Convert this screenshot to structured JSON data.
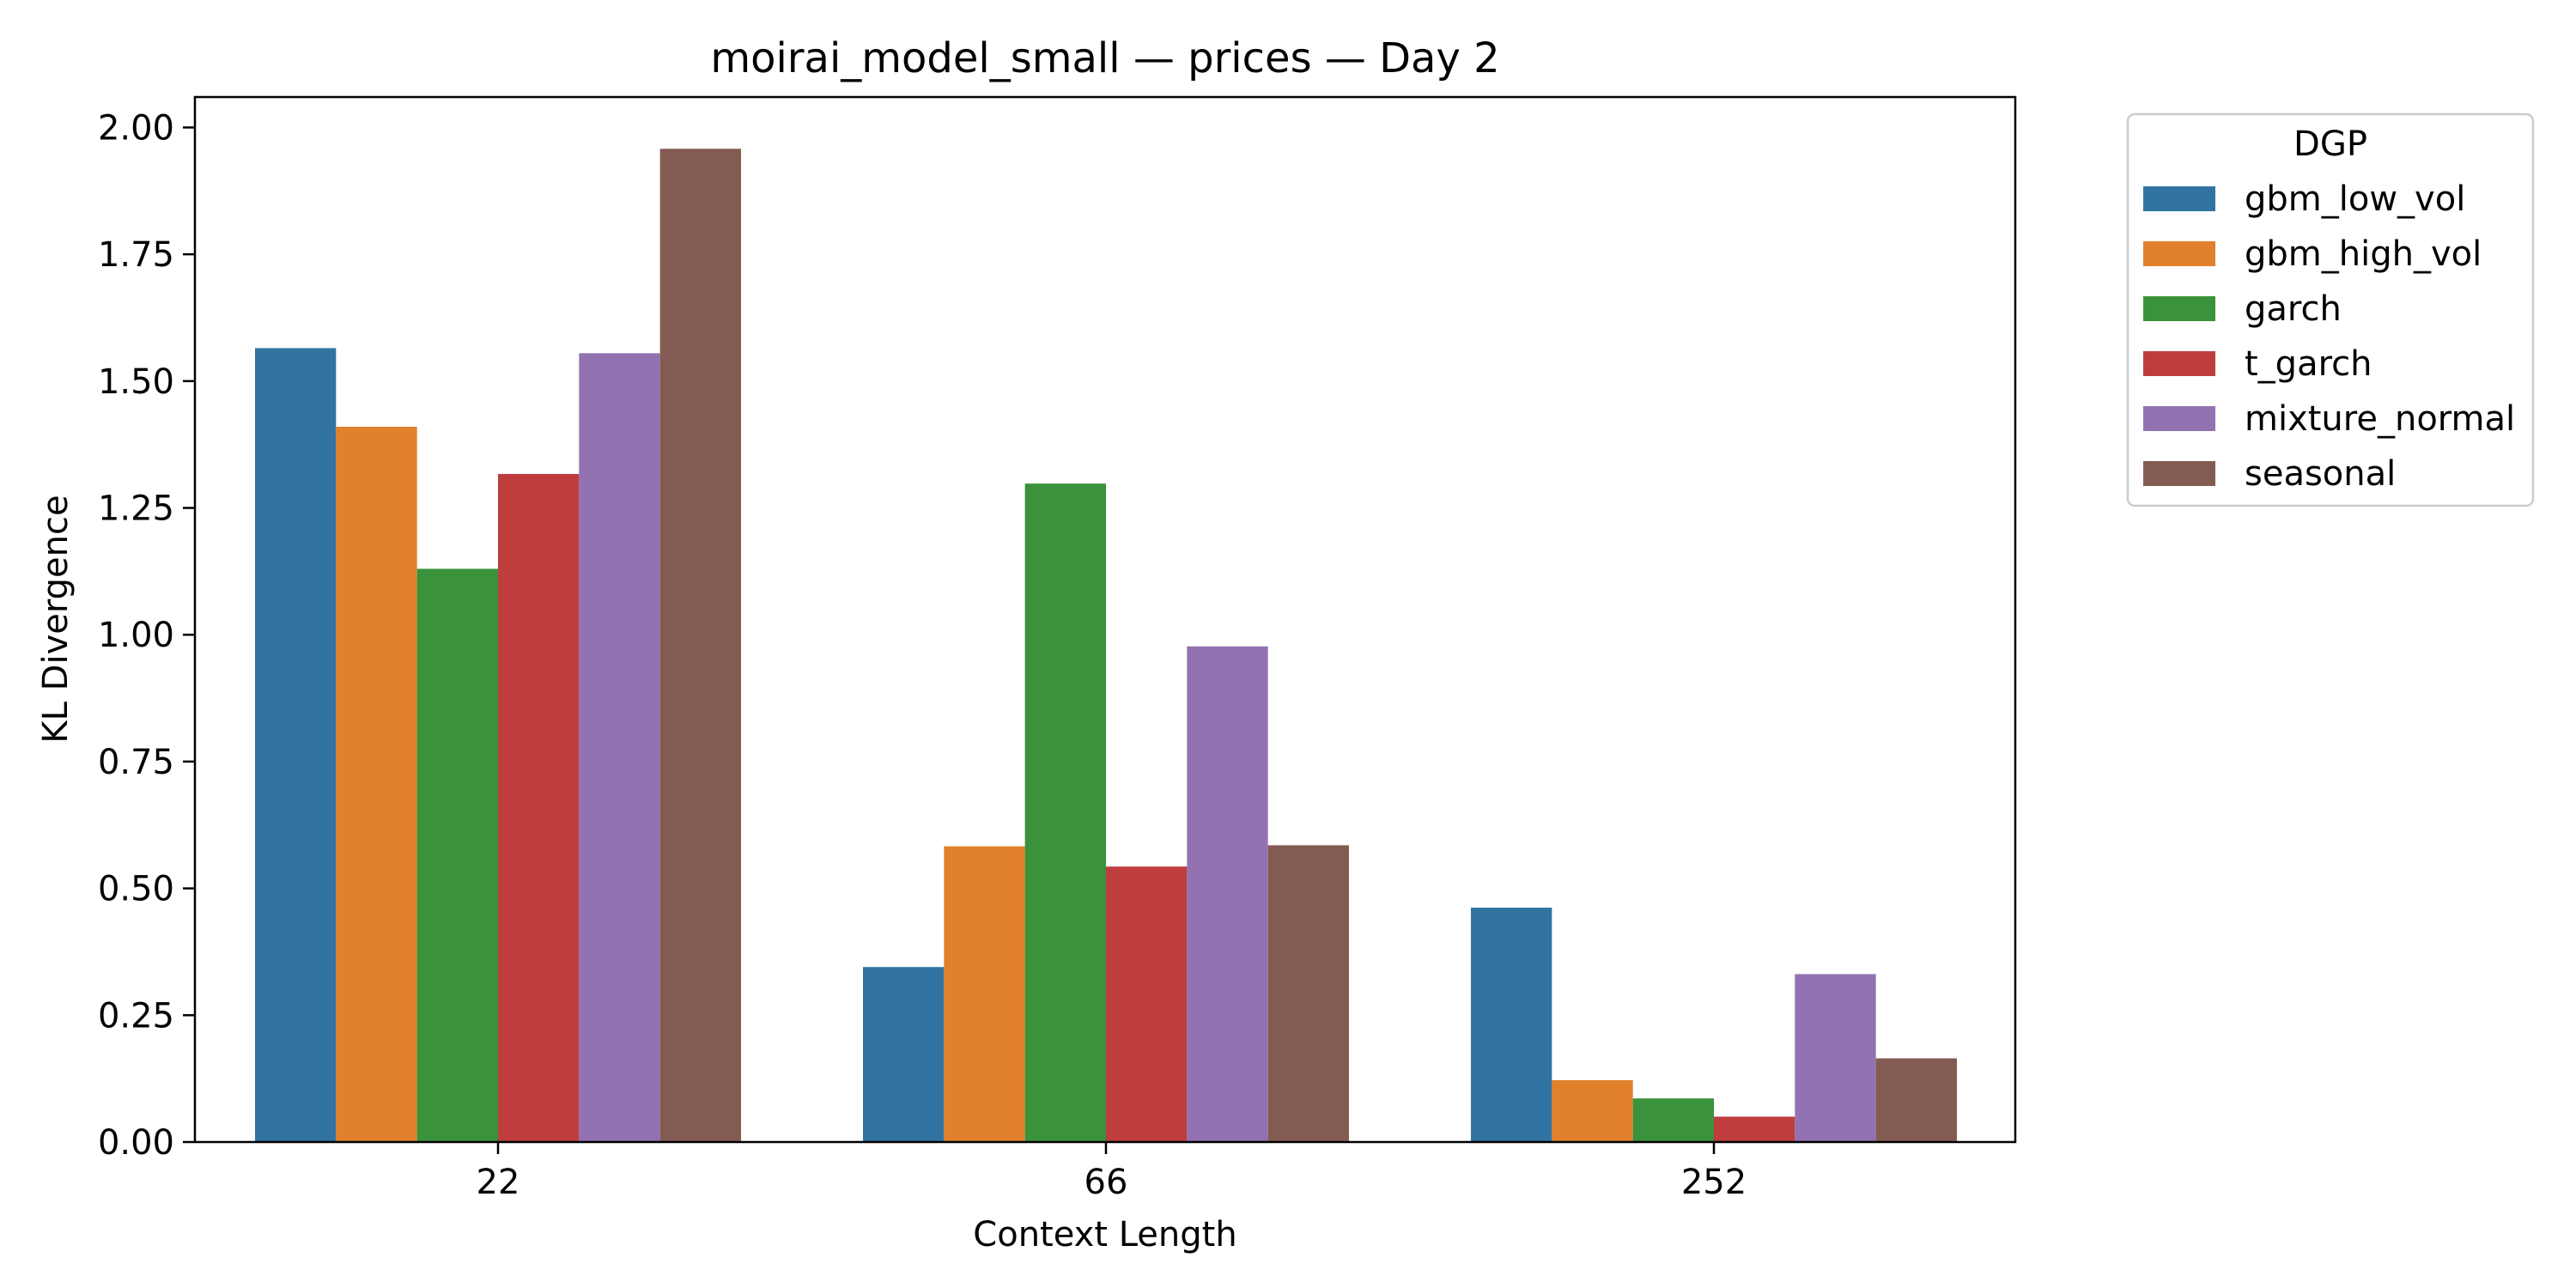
{
  "chart_data": {
    "type": "bar",
    "title": "moirai_model_small — prices — Day 2",
    "xlabel": "Context Length",
    "ylabel": "KL Divergence",
    "categories": [
      "22",
      "66",
      "252"
    ],
    "ylim": [
      0,
      2.06
    ],
    "yticks": [
      "0.00",
      "0.25",
      "0.50",
      "0.75",
      "1.00",
      "1.25",
      "1.50",
      "1.75",
      "2.00"
    ],
    "grid": false,
    "legend": {
      "title": "DGP",
      "position": "outside-top-right"
    },
    "series": [
      {
        "name": "gbm_low_vol",
        "color": "#3274a1",
        "values": [
          1.565,
          0.345,
          0.462
        ]
      },
      {
        "name": "gbm_high_vol",
        "color": "#e1812c",
        "values": [
          1.41,
          0.583,
          0.122
        ]
      },
      {
        "name": "garch",
        "color": "#3a923a",
        "values": [
          1.13,
          1.298,
          0.086
        ]
      },
      {
        "name": "t_garch",
        "color": "#c03d3e",
        "values": [
          1.317,
          0.543,
          0.05
        ]
      },
      {
        "name": "mixture_normal",
        "color": "#9372b2",
        "values": [
          1.555,
          0.977,
          0.331
        ]
      },
      {
        "name": "seasonal",
        "color": "#845b53",
        "values": [
          1.958,
          0.585,
          0.165
        ]
      }
    ]
  }
}
